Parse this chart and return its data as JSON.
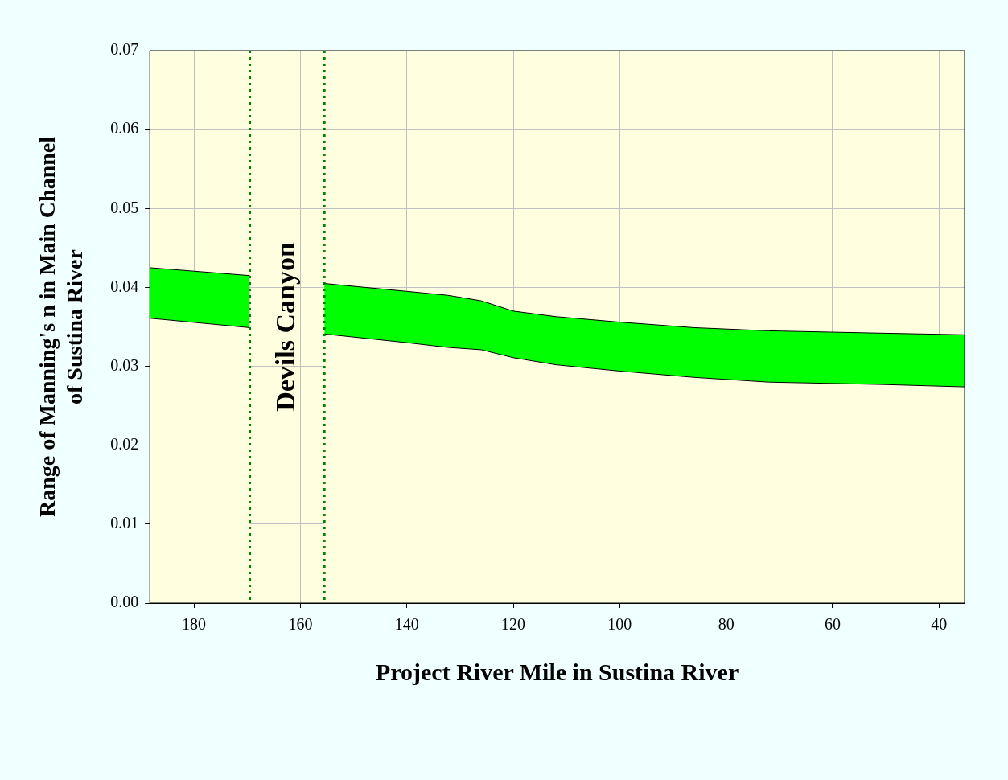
{
  "chart_data": {
    "type": "area",
    "stacked": true,
    "xlabel": "Project River Mile in Sustina River",
    "ylabel": "Range of Manning's n in Main Channel\nof Sustina River",
    "xlim": [
      188.3,
      35.2
    ],
    "xticks": [
      180,
      160,
      140,
      120,
      100,
      80,
      60,
      40
    ],
    "ylim": [
      0,
      0.07
    ],
    "yticks": [
      {
        "value": 0,
        "label": "0.00"
      },
      {
        "value": 0.01,
        "label": "0.01"
      },
      {
        "value": 0.02,
        "label": "0.02"
      },
      {
        "value": 0.03,
        "label": "0.03"
      },
      {
        "value": 0.04,
        "label": "0.04"
      },
      {
        "value": 0.05,
        "label": "0.05"
      },
      {
        "value": 0.06,
        "label": "0.06"
      },
      {
        "value": 0.07,
        "label": "0.07"
      }
    ],
    "grid": true,
    "x": [
      188.3,
      169.5,
      162.5,
      155.5,
      140,
      132.3,
      126,
      120,
      112,
      100,
      86,
      72,
      50.6,
      35.2
    ],
    "series": [
      {
        "color": "#ffffe0",
        "values": [
          0.0361,
          0.0349,
          null,
          0.0341,
          0.033,
          0.0324,
          0.0321,
          0.0311,
          0.0302,
          0.0294,
          0.0286,
          0.028,
          0.0277,
          0.0274
        ]
      },
      {
        "color": "#00ff00",
        "values": [
          0.0064,
          0.0066,
          null,
          0.0064,
          0.0065,
          0.0066,
          0.0062,
          0.0059,
          0.0061,
          0.0062,
          0.0063,
          0.0065,
          0.0065,
          0.0066
        ]
      }
    ],
    "ref_lines": [
      {
        "axis": "x",
        "value": 169.5,
        "color": "#008000",
        "line_style": "dotted"
      },
      {
        "axis": "x",
        "value": 155.5,
        "color": "#008000",
        "line_style": "dotted"
      }
    ],
    "annotations": [
      "Devils Canyon"
    ]
  }
}
